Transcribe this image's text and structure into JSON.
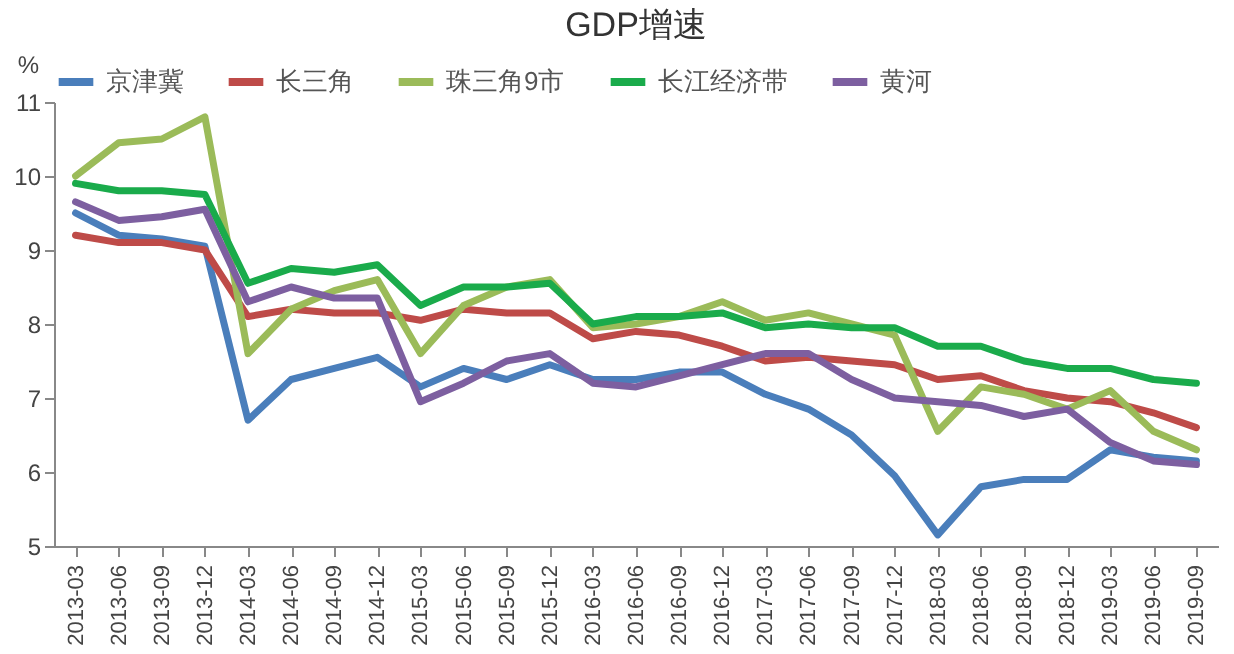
{
  "chart_data": {
    "type": "line",
    "title": "GDP增速",
    "ylabel": "%",
    "categories": [
      "2013-03",
      "2013-06",
      "2013-09",
      "2013-12",
      "2014-03",
      "2014-06",
      "2014-09",
      "2014-12",
      "2015-03",
      "2015-06",
      "2015-09",
      "2015-12",
      "2016-03",
      "2016-06",
      "2016-09",
      "2016-12",
      "2017-03",
      "2017-06",
      "2017-09",
      "2017-12",
      "2018-03",
      "2018-06",
      "2018-09",
      "2018-12",
      "2019-03",
      "2019-06",
      "2019-09"
    ],
    "series": [
      {
        "name": "京津冀",
        "color": "#4a7ebb",
        "values": [
          9.5,
          9.2,
          9.15,
          9.05,
          6.7,
          7.25,
          7.4,
          7.55,
          7.15,
          7.4,
          7.25,
          7.45,
          7.25,
          7.25,
          7.35,
          7.35,
          7.05,
          6.85,
          6.5,
          5.95,
          5.15,
          5.8,
          5.9,
          5.9,
          6.3,
          6.2,
          6.15
        ]
      },
      {
        "name": "长三角",
        "color": "#be4b48",
        "values": [
          9.2,
          9.1,
          9.1,
          9.0,
          8.1,
          8.2,
          8.15,
          8.15,
          8.05,
          8.2,
          8.15,
          8.15,
          7.8,
          7.9,
          7.85,
          7.7,
          7.5,
          7.55,
          7.5,
          7.45,
          7.25,
          7.3,
          7.1,
          7.0,
          6.95,
          6.8,
          6.6
        ]
      },
      {
        "name": "珠三角9市",
        "color": "#9bbb59",
        "values": [
          10.0,
          10.45,
          10.5,
          10.8,
          7.6,
          8.2,
          8.45,
          8.6,
          7.6,
          8.25,
          8.5,
          8.6,
          7.95,
          8.0,
          8.1,
          8.3,
          8.05,
          8.15,
          8.0,
          7.85,
          6.55,
          7.15,
          7.05,
          6.85,
          7.1,
          6.55,
          6.3
        ]
      },
      {
        "name": "长江经济带",
        "color": "#1aab4b",
        "values": [
          9.9,
          9.8,
          9.8,
          9.75,
          8.55,
          8.75,
          8.7,
          8.8,
          8.25,
          8.5,
          8.5,
          8.55,
          8.0,
          8.1,
          8.1,
          8.15,
          7.95,
          8.0,
          7.95,
          7.95,
          7.7,
          7.7,
          7.5,
          7.4,
          7.4,
          7.25,
          7.2
        ]
      },
      {
        "name": "黄河",
        "color": "#7d5fa0",
        "values": [
          9.65,
          9.4,
          9.45,
          9.55,
          8.3,
          8.5,
          8.35,
          8.35,
          6.95,
          7.2,
          7.5,
          7.6,
          7.2,
          7.15,
          7.3,
          7.45,
          7.6,
          7.6,
          7.25,
          7.0,
          6.95,
          6.9,
          6.75,
          6.85,
          6.4,
          6.15,
          6.1
        ]
      }
    ],
    "ylim": [
      5,
      11
    ],
    "yticks": [
      5,
      6,
      7,
      8,
      9,
      10,
      11
    ],
    "grid": false,
    "legend": "top",
    "marker": "none",
    "line_style": "solid"
  }
}
